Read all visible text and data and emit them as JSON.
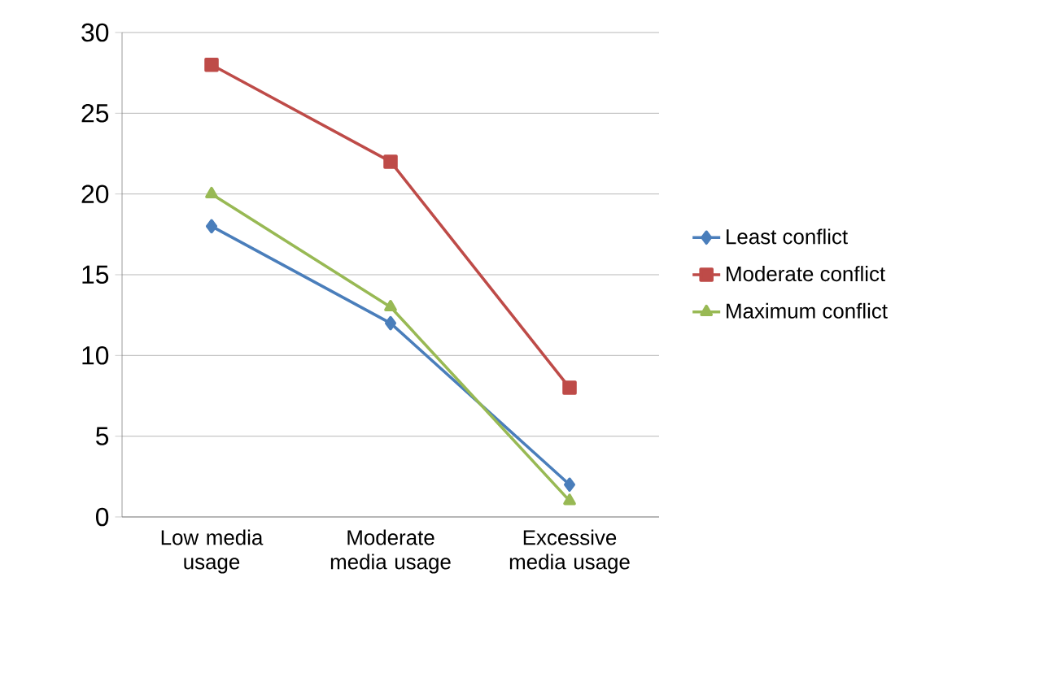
{
  "chart_data": {
    "type": "line",
    "categories": [
      "Low media usage",
      "Moderate media usage",
      "Excessive media usage"
    ],
    "series": [
      {
        "name": "Least conflict",
        "color": "#4a7ebb",
        "marker": "diamond",
        "values": [
          18,
          12,
          2
        ]
      },
      {
        "name": "Moderate conflict",
        "color": "#be4b48",
        "marker": "square",
        "values": [
          28,
          22,
          8
        ]
      },
      {
        "name": "Maximum conflict",
        "color": "#98b954",
        "marker": "triangle",
        "values": [
          20,
          13,
          1
        ]
      }
    ],
    "ylim": [
      0,
      30
    ],
    "yticks": [
      0,
      5,
      10,
      15,
      20,
      25,
      30
    ],
    "grid": "y",
    "legend": "right"
  }
}
